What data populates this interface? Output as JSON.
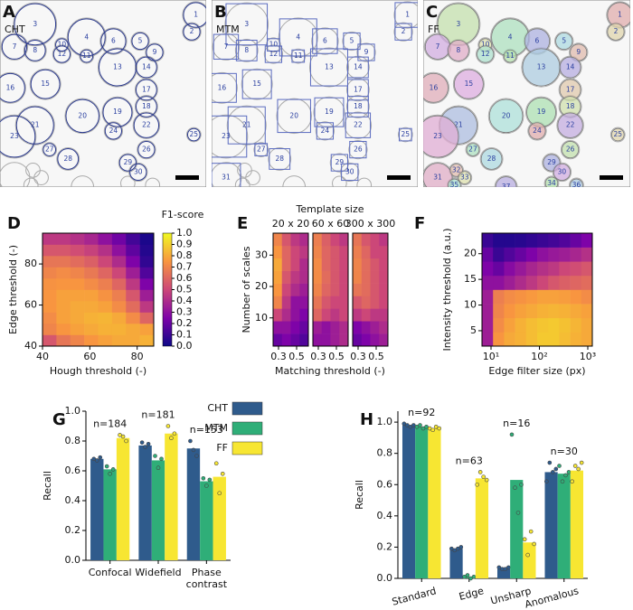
{
  "images": [
    {
      "letter": "A",
      "method": "CHT",
      "labels": [
        "1",
        "2",
        "3",
        "4",
        "5",
        "6",
        "7",
        "8",
        "9",
        "10",
        "11",
        "12",
        "13",
        "14",
        "15",
        "16",
        "17",
        "18",
        "19",
        "20",
        "21",
        "22",
        "23",
        "24",
        "25",
        "26",
        "27",
        "28",
        "29",
        "30"
      ]
    },
    {
      "letter": "B",
      "method": "MTM",
      "labels": [
        "1",
        "2",
        "3",
        "4",
        "5",
        "6",
        "7",
        "8",
        "9",
        "10",
        "11",
        "12",
        "13",
        "14",
        "15",
        "16",
        "17",
        "18",
        "19",
        "20",
        "21",
        "22",
        "23",
        "24",
        "25",
        "26",
        "27",
        "28",
        "29",
        "30",
        "31"
      ]
    },
    {
      "letter": "C",
      "method": "FF",
      "labels": [
        "1",
        "2",
        "3",
        "4",
        "5",
        "6",
        "7",
        "8",
        "9",
        "10",
        "11",
        "12",
        "13",
        "14",
        "15",
        "16",
        "17",
        "18",
        "19",
        "20",
        "21",
        "22",
        "23",
        "24",
        "25",
        "26",
        "27",
        "28",
        "29",
        "30",
        "31",
        "32",
        "33",
        "34",
        "35",
        "36",
        "37"
      ]
    }
  ],
  "chart_data": [
    {
      "type": "heatmap",
      "letter": "D",
      "xlabel": "Hough threshold (-)",
      "ylabel": "Edge threshold (-)",
      "xlim": [
        40,
        87
      ],
      "ylim": [
        40,
        95
      ],
      "xticks": [
        40,
        60,
        80
      ],
      "yticks": [
        40,
        60,
        80
      ],
      "colormap": "plasma",
      "clim": [
        0,
        1
      ],
      "z": [
        [
          0.55,
          0.65,
          0.7,
          0.75,
          0.78,
          0.8,
          0.8,
          0.82
        ],
        [
          0.7,
          0.75,
          0.78,
          0.8,
          0.82,
          0.82,
          0.8,
          0.78
        ],
        [
          0.72,
          0.78,
          0.8,
          0.82,
          0.83,
          0.8,
          0.72,
          0.6
        ],
        [
          0.75,
          0.78,
          0.8,
          0.8,
          0.78,
          0.72,
          0.62,
          0.45
        ],
        [
          0.75,
          0.78,
          0.78,
          0.78,
          0.74,
          0.68,
          0.55,
          0.35
        ],
        [
          0.74,
          0.75,
          0.75,
          0.72,
          0.68,
          0.6,
          0.45,
          0.25
        ],
        [
          0.7,
          0.72,
          0.7,
          0.66,
          0.6,
          0.5,
          0.35,
          0.15
        ],
        [
          0.65,
          0.65,
          0.62,
          0.58,
          0.5,
          0.4,
          0.25,
          0.08
        ],
        [
          0.55,
          0.55,
          0.52,
          0.48,
          0.42,
          0.3,
          0.18,
          0.05
        ],
        [
          0.45,
          0.45,
          0.42,
          0.38,
          0.3,
          0.22,
          0.12,
          0.03
        ]
      ],
      "colorbar": {
        "label": "F1-score",
        "ticks": [
          {
            "value": 0,
            "label": "0.0"
          },
          {
            "value": 0.1,
            "label": "0.1"
          },
          {
            "value": 0.2,
            "label": "0.2"
          },
          {
            "value": 0.3,
            "label": "0.3"
          },
          {
            "value": 0.4,
            "label": "0.4"
          },
          {
            "value": 0.5,
            "label": "0.5"
          },
          {
            "value": 0.6,
            "label": "0.6"
          },
          {
            "value": 0.7,
            "label": "0.7"
          },
          {
            "value": 0.8,
            "label": "0.8"
          },
          {
            "value": 0.9,
            "label": "0.9"
          },
          {
            "value": 1,
            "label": "1.0"
          }
        ]
      }
    },
    {
      "type": "heatmap-grid",
      "letter": "E",
      "title": "Template size",
      "xlabel": "Matching threshold (-)",
      "ylabel": "Number of scales",
      "xlim": [
        0.24,
        0.63
      ],
      "ylim": [
        1,
        37
      ],
      "xticks": [
        0.3,
        0.5
      ],
      "yticks": [
        10,
        20,
        30
      ],
      "colormap": "plasma",
      "clim": [
        0,
        1
      ],
      "panels": [
        {
          "title": "20 x 20",
          "z": [
            [
              0.2,
              0.25,
              0.2,
              0.15
            ],
            [
              0.3,
              0.3,
              0.25,
              0.2
            ],
            [
              0.5,
              0.4,
              0.3,
              0.25
            ],
            [
              0.7,
              0.45,
              0.3,
              0.3
            ],
            [
              0.75,
              0.5,
              0.4,
              0.35
            ],
            [
              0.78,
              0.55,
              0.45,
              0.4
            ],
            [
              0.8,
              0.6,
              0.5,
              0.4
            ],
            [
              0.75,
              0.6,
              0.5,
              0.45
            ],
            [
              0.7,
              0.55,
              0.45,
              0.4
            ]
          ]
        },
        {
          "title": "60 x 60",
          "z": [
            [
              0.3,
              0.3,
              0.35,
              0.4
            ],
            [
              0.35,
              0.3,
              0.35,
              0.4
            ],
            [
              0.6,
              0.5,
              0.45,
              0.5
            ],
            [
              0.65,
              0.55,
              0.5,
              0.5
            ],
            [
              0.7,
              0.6,
              0.55,
              0.5
            ],
            [
              0.72,
              0.62,
              0.55,
              0.5
            ],
            [
              0.72,
              0.6,
              0.55,
              0.5
            ],
            [
              0.7,
              0.6,
              0.55,
              0.5
            ],
            [
              0.68,
              0.58,
              0.5,
              0.45
            ]
          ]
        },
        {
          "title": "300 x 300",
          "z": [
            [
              0.2,
              0.25,
              0.3,
              0.35
            ],
            [
              0.25,
              0.3,
              0.35,
              0.4
            ],
            [
              0.45,
              0.5,
              0.45,
              0.45
            ],
            [
              0.55,
              0.6,
              0.55,
              0.5
            ],
            [
              0.65,
              0.62,
              0.55,
              0.5
            ],
            [
              0.7,
              0.62,
              0.55,
              0.5
            ],
            [
              0.7,
              0.62,
              0.55,
              0.5
            ],
            [
              0.68,
              0.6,
              0.5,
              0.5
            ],
            [
              0.65,
              0.55,
              0.5,
              0.45
            ]
          ]
        }
      ]
    },
    {
      "type": "heatmap",
      "letter": "F",
      "xlabel": "Edge filter size (px)",
      "ylabel": "Intensity threshold (a.u.)",
      "xscale": "log",
      "xlim": [
        6.5,
        1240
      ],
      "ylim": [
        2,
        24
      ],
      "xticks": [
        {
          "value": 10,
          "label": "10¹"
        },
        {
          "value": 100,
          "label": "10²"
        },
        {
          "value": 1000,
          "label": "10³"
        }
      ],
      "yticks": [
        5,
        10,
        15,
        20
      ],
      "colormap": "plasma",
      "clim": [
        0,
        1
      ],
      "z": [
        [
          0.35,
          0.75,
          0.8,
          0.82,
          0.85,
          0.88,
          0.88,
          0.85,
          0.82,
          0.8
        ],
        [
          0.35,
          0.72,
          0.78,
          0.82,
          0.85,
          0.87,
          0.88,
          0.86,
          0.83,
          0.8
        ],
        [
          0.35,
          0.7,
          0.75,
          0.78,
          0.8,
          0.82,
          0.83,
          0.82,
          0.8,
          0.78
        ],
        [
          0.35,
          0.68,
          0.72,
          0.74,
          0.76,
          0.78,
          0.78,
          0.77,
          0.75,
          0.72
        ],
        [
          0.3,
          0.3,
          0.35,
          0.4,
          0.45,
          0.5,
          0.55,
          0.58,
          0.6,
          0.62
        ],
        [
          0.25,
          0.2,
          0.28,
          0.33,
          0.38,
          0.42,
          0.45,
          0.5,
          0.52,
          0.55
        ],
        [
          0.2,
          0.1,
          0.15,
          0.2,
          0.25,
          0.3,
          0.33,
          0.35,
          0.38,
          0.42
        ],
        [
          0.1,
          0.05,
          0.05,
          0.06,
          0.08,
          0.1,
          0.12,
          0.15,
          0.2,
          0.25
        ]
      ]
    },
    {
      "type": "bar",
      "letter": "G",
      "ylabel": "Recall",
      "categories": [
        "Confocal",
        "Widefield",
        "Phase\ncontrast"
      ],
      "ylim": [
        0,
        1.0
      ],
      "yticks": [
        {
          "value": 0,
          "label": "0.0"
        },
        {
          "value": 0.2,
          "label": "0.2"
        },
        {
          "value": 0.4,
          "label": "0.4"
        },
        {
          "value": 0.6,
          "label": "0.6"
        },
        {
          "value": 0.8,
          "label": "0.8"
        },
        {
          "value": 1,
          "label": "1.0"
        }
      ],
      "annotations": [
        "n=184",
        "n=181",
        "n=153"
      ],
      "legend": "outside-right",
      "series": [
        {
          "name": "CHT",
          "color": "#2f5b8c",
          "values": [
            0.68,
            0.77,
            0.75
          ],
          "points": [
            [
              0.68,
              0.67,
              0.69
            ],
            [
              0.79,
              0.76,
              0.78
            ],
            [
              0.8,
              0.74,
              0.7
            ]
          ]
        },
        {
          "name": "MTM",
          "color": "#2fae78",
          "values": [
            0.61,
            0.67,
            0.53
          ],
          "points": [
            [
              0.63,
              0.58,
              0.61
            ],
            [
              0.7,
              0.62,
              0.68
            ],
            [
              0.55,
              0.5,
              0.54
            ]
          ]
        },
        {
          "name": "FF",
          "color": "#f7e632",
          "values": [
            0.82,
            0.85,
            0.56
          ],
          "points": [
            [
              0.84,
              0.83,
              0.8
            ],
            [
              0.9,
              0.82,
              0.85
            ],
            [
              0.65,
              0.45,
              0.58
            ]
          ]
        }
      ]
    },
    {
      "type": "bar",
      "letter": "H",
      "ylabel": "Recall",
      "categories": [
        "Standard",
        "Edge",
        "Unsharp",
        "Anomalous"
      ],
      "ylim": [
        0,
        1.07
      ],
      "yticks": [
        {
          "value": 0,
          "label": "0.0"
        },
        {
          "value": 0.2,
          "label": "0.2"
        },
        {
          "value": 0.4,
          "label": "0.4"
        },
        {
          "value": 0.6,
          "label": "0.6"
        },
        {
          "value": 0.8,
          "label": "0.8"
        },
        {
          "value": 1,
          "label": "1.0"
        }
      ],
      "annotations": [
        "n=92",
        "n=63",
        "n=16",
        "n=30"
      ],
      "series": [
        {
          "name": "CHT",
          "color": "#2f5b8c",
          "values": [
            0.98,
            0.19,
            0.06,
            0.68
          ],
          "points": [
            [
              0.99,
              0.98,
              0.97,
              0.98
            ],
            [
              0.19,
              0.18,
              0.19,
              0.2
            ],
            [
              0.07,
              0.06,
              0.06,
              0.07
            ],
            [
              0.62,
              0.74,
              0.68,
              0.7
            ]
          ]
        },
        {
          "name": "MTM",
          "color": "#2fae78",
          "values": [
            0.97,
            0.01,
            0.63,
            0.67
          ],
          "points": [
            [
              0.97,
              0.98,
              0.96,
              0.97
            ],
            [
              0.01,
              0.02,
              0,
              0.01
            ],
            [
              0.92,
              0.58,
              0.42,
              0.6
            ],
            [
              0.72,
              0.62,
              0.66,
              0.68
            ]
          ]
        },
        {
          "name": "FF",
          "color": "#f7e632",
          "values": [
            0.96,
            0.64,
            0.23,
            0.69
          ],
          "points": [
            [
              0.96,
              0.95,
              0.97,
              0.96
            ],
            [
              0.6,
              0.68,
              0.65,
              0.63
            ],
            [
              0.25,
              0.15,
              0.3,
              0.22
            ],
            [
              0.62,
              0.72,
              0.7,
              0.74
            ]
          ]
        }
      ]
    }
  ]
}
